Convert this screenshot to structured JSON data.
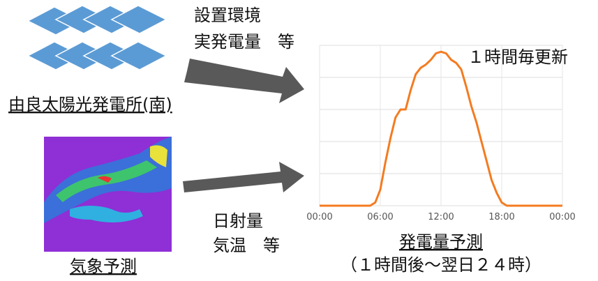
{
  "left_top": {
    "info_lines": [
      "設置環境",
      "実発電量　等"
    ],
    "site_label": "由良太陽光発電所(南)"
  },
  "left_bottom": {
    "info_lines": [
      "日射量",
      "気温　等"
    ],
    "weather_label": "気象予測"
  },
  "chart": {
    "type": "line",
    "annotation": "１時間毎更新",
    "caption": "発電量予測",
    "subcaption": "（１時間後～翌日２４時）",
    "color": "#f47b20",
    "x": [
      0,
      5,
      5.5,
      6,
      6.5,
      7,
      7.5,
      8,
      8.5,
      9,
      9.5,
      10,
      10.5,
      11,
      11.5,
      12,
      12.5,
      13,
      13.5,
      14,
      14.5,
      15,
      15.5,
      16,
      16.5,
      17,
      17.5,
      18,
      18.5,
      24
    ],
    "values": [
      0,
      0,
      2,
      10,
      27,
      42,
      55,
      60,
      60,
      72,
      82,
      86,
      88,
      91,
      95,
      96,
      95,
      91,
      89,
      85,
      74,
      62,
      52,
      40,
      28,
      16,
      8,
      2,
      0,
      0
    ],
    "xlim": [
      0,
      24
    ],
    "xticks": [
      {
        "value": 0,
        "label": "00:00"
      },
      {
        "value": 6,
        "label": "06:00"
      },
      {
        "value": 12,
        "label": "12:00"
      },
      {
        "value": 18,
        "label": "18:00"
      },
      {
        "value": 24,
        "label": "00:00"
      }
    ],
    "ylim": [
      0,
      100
    ],
    "ygrid": [
      0,
      20,
      40,
      60,
      80,
      100
    ],
    "grid": true
  }
}
